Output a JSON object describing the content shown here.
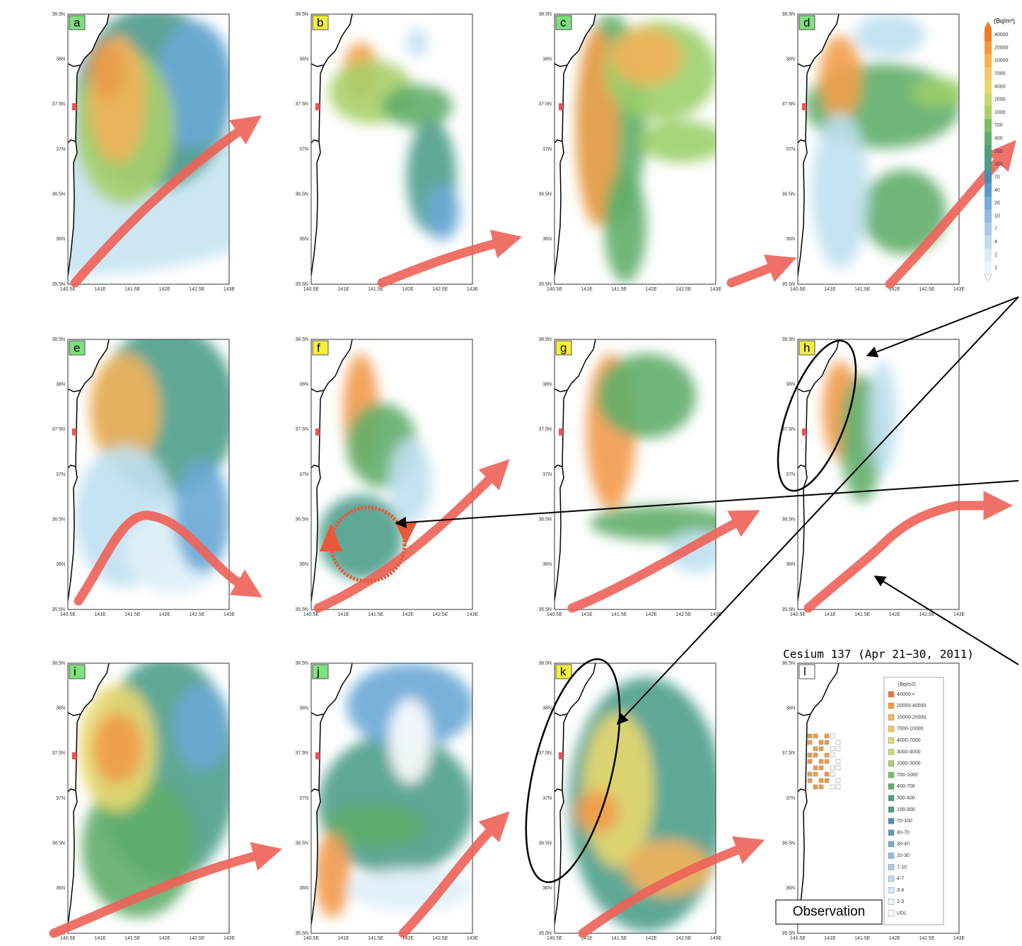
{
  "panels": [
    {
      "label": "a"
    },
    {
      "label": "b"
    },
    {
      "label": "c"
    },
    {
      "label": "d"
    },
    {
      "label": "e"
    },
    {
      "label": "f"
    },
    {
      "label": "g"
    },
    {
      "label": "h"
    },
    {
      "label": "i"
    },
    {
      "label": "j"
    },
    {
      "label": "k"
    },
    {
      "label": "l"
    }
  ],
  "axes": {
    "lat_labels": [
      "38.5N",
      "38N",
      "37.5N",
      "37N",
      "36.5N",
      "36N",
      "35.5N"
    ],
    "lon_labels": [
      "140.5E",
      "141E",
      "141.5E",
      "142E",
      "142.5E",
      "143E"
    ]
  },
  "colorbar": {
    "title": "(Bq/m²)",
    "labels": [
      "40000",
      "20000",
      "10000",
      "7000",
      "4000",
      "2000",
      "1000",
      "700",
      "400",
      "200",
      "100",
      "70",
      "40",
      "20",
      "10",
      "7",
      "4",
      "2",
      "1"
    ]
  },
  "observation": {
    "title": "Cesium 137 (Apr 21−30, 2011)",
    "legend_title": "(Bq/m2)",
    "legend": [
      "40000 <",
      "20000-40000",
      "10000-20000",
      "7000-10000",
      "4000-7000",
      "3000-4000",
      "1000-3000",
      "700-1000",
      "400-700",
      "300-400",
      "100-300",
      "70-100",
      "40-70",
      "30-40",
      "10-30",
      "7-10",
      "4-7",
      "3-4",
      "1-3",
      "UDL"
    ],
    "caption": "Observation"
  }
}
